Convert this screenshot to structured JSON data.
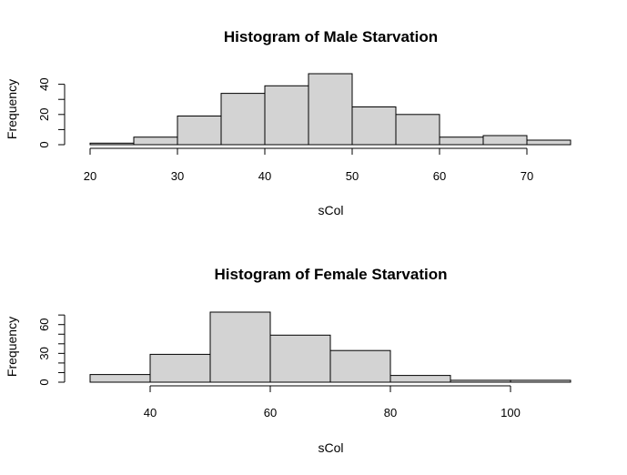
{
  "chart_data": [
    {
      "type": "bar",
      "title": "Histogram of Male Starvation",
      "xlabel": "sCol",
      "ylabel": "Frequency",
      "bins": [
        {
          "from": 20,
          "to": 25,
          "count": 1
        },
        {
          "from": 25,
          "to": 30,
          "count": 5
        },
        {
          "from": 30,
          "to": 35,
          "count": 19
        },
        {
          "from": 35,
          "to": 40,
          "count": 34
        },
        {
          "from": 40,
          "to": 45,
          "count": 39
        },
        {
          "from": 45,
          "to": 50,
          "count": 47
        },
        {
          "from": 50,
          "to": 55,
          "count": 25
        },
        {
          "from": 55,
          "to": 60,
          "count": 20
        },
        {
          "from": 60,
          "to": 65,
          "count": 5
        },
        {
          "from": 65,
          "to": 70,
          "count": 6
        },
        {
          "from": 70,
          "to": 75,
          "count": 3
        }
      ],
      "xlim": [
        20,
        75
      ],
      "ylim": [
        0,
        47
      ],
      "x_ticks": [
        20,
        30,
        40,
        50,
        60,
        70
      ],
      "y_ticks": [
        0,
        20,
        40
      ],
      "y_minor_ticks": [
        0,
        10,
        20,
        30,
        40
      ],
      "bar_fill": "#d3d3d3",
      "grid": false
    },
    {
      "type": "bar",
      "title": "Histogram of Female Starvation",
      "xlabel": "sCol",
      "ylabel": "Frequency",
      "bins": [
        {
          "from": 30,
          "to": 40,
          "count": 8
        },
        {
          "from": 40,
          "to": 50,
          "count": 29
        },
        {
          "from": 50,
          "to": 60,
          "count": 73
        },
        {
          "from": 60,
          "to": 70,
          "count": 49
        },
        {
          "from": 70,
          "to": 80,
          "count": 33
        },
        {
          "from": 80,
          "to": 90,
          "count": 7
        },
        {
          "from": 90,
          "to": 100,
          "count": 2
        },
        {
          "from": 100,
          "to": 110,
          "count": 2
        }
      ],
      "xlim": [
        30,
        110
      ],
      "ylim": [
        0,
        73
      ],
      "x_ticks": [
        40,
        60,
        80,
        100
      ],
      "y_ticks": [
        0,
        30,
        60
      ],
      "y_minor_ticks": [
        0,
        10,
        20,
        30,
        40,
        50,
        60,
        70
      ],
      "bar_fill": "#d3d3d3",
      "grid": false
    }
  ]
}
